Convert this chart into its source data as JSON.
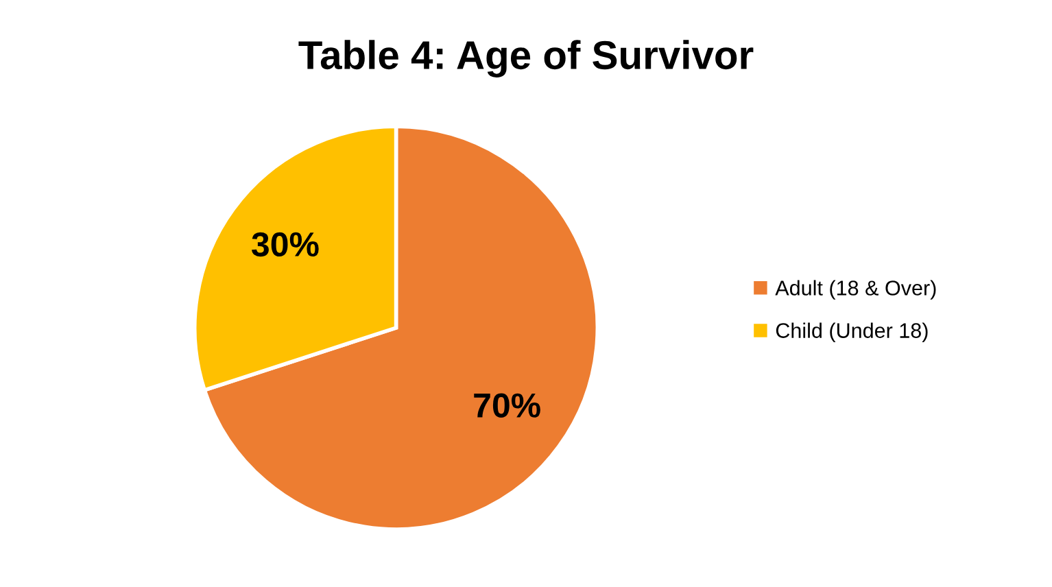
{
  "chart_data": {
    "type": "pie",
    "title": "Table 4: Age of Survivor",
    "categories": [
      "Adult (18 & Over)",
      "Child (Under 18)"
    ],
    "values": [
      70,
      30
    ],
    "colors": [
      "#ed7d31",
      "#ffc000"
    ],
    "value_labels": [
      "70%",
      "30%"
    ],
    "legend": "right"
  }
}
